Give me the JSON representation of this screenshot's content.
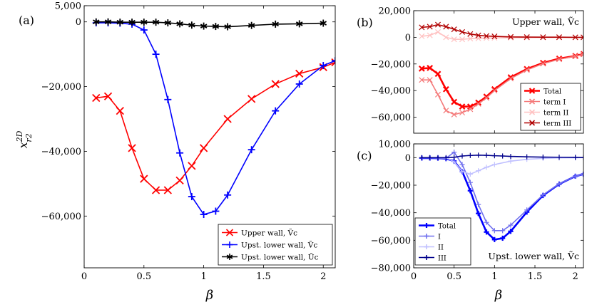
{
  "chart_data": [
    {
      "id": "a",
      "type": "line",
      "panel_label": "(a)",
      "ylabel": "x^{2D}_{r2}",
      "xlabel": "β",
      "xlim": [
        0,
        2.1
      ],
      "ylim": [
        -76000,
        5000
      ],
      "xticks": [
        0,
        0.5,
        1,
        1.5,
        2
      ],
      "xtick_labels": [
        "0",
        "0.5",
        "1",
        "1.5",
        "2"
      ],
      "yticks": [
        5000,
        0,
        -20000,
        -40000,
        -60000
      ],
      "ytick_labels": [
        "5,000",
        "0",
        "−20,000",
        "−40,000",
        "−60,000"
      ],
      "legend_position": "bottom-right",
      "series": [
        {
          "name": "Upper wall, Ṽc",
          "color": "#ff0000",
          "marker": "x",
          "x": [
            0.1,
            0.2,
            0.3,
            0.4,
            0.5,
            0.6,
            0.7,
            0.8,
            0.9,
            1.0,
            1.2,
            1.4,
            1.6,
            1.8,
            2.0,
            2.1
          ],
          "y": [
            -23500,
            -23000,
            -27500,
            -39000,
            -48500,
            -52000,
            -52000,
            -49000,
            -44500,
            -39000,
            -30000,
            -23800,
            -19200,
            -16000,
            -14000,
            -12500
          ]
        },
        {
          "name": "Upst. lower wall, Ṽc",
          "color": "#0000ff",
          "marker": "+",
          "x": [
            0.1,
            0.2,
            0.3,
            0.4,
            0.5,
            0.6,
            0.7,
            0.8,
            0.9,
            1.0,
            1.1,
            1.2,
            1.4,
            1.6,
            1.8,
            2.0,
            2.1
          ],
          "y": [
            -300,
            -300,
            -400,
            -700,
            -2500,
            -10000,
            -24000,
            -40500,
            -54000,
            -59500,
            -58500,
            -53500,
            -39500,
            -27500,
            -19200,
            -13500,
            -12000
          ]
        },
        {
          "name": "Upst. lower wall, Ũc",
          "color": "#000000",
          "marker": "star",
          "x": [
            0.1,
            0.2,
            0.3,
            0.4,
            0.5,
            0.6,
            0.7,
            0.8,
            0.9,
            1.0,
            1.1,
            1.2,
            1.4,
            1.6,
            1.8,
            2.0
          ],
          "y": [
            0,
            0,
            -100,
            -100,
            -100,
            -100,
            -300,
            -600,
            -1000,
            -1300,
            -1400,
            -1500,
            -1100,
            -700,
            -600,
            -400
          ]
        }
      ]
    },
    {
      "id": "b",
      "type": "line",
      "panel_label": "(b)",
      "xlim": [
        0,
        2.1
      ],
      "ylim": [
        -72000,
        20000
      ],
      "xticks": [
        0,
        0.5,
        1,
        1.5,
        2
      ],
      "yticks": [
        20000,
        0,
        -20000,
        -40000,
        -60000
      ],
      "ytick_labels": [
        "20,000",
        "0",
        "−20,000",
        "−40,000",
        "−60,000"
      ],
      "annotation": "Upper wall, Ṽc",
      "legend_position": "bottom-right",
      "series": [
        {
          "name": "Total",
          "color": "#ff0000",
          "marker": "x",
          "bold": true,
          "x": [
            0.1,
            0.2,
            0.3,
            0.4,
            0.5,
            0.6,
            0.7,
            0.8,
            0.9,
            1.0,
            1.2,
            1.4,
            1.6,
            1.8,
            2.0,
            2.1
          ],
          "y": [
            -23500,
            -23000,
            -27500,
            -39000,
            -48500,
            -52000,
            -52000,
            -49000,
            -44500,
            -39000,
            -30000,
            -23800,
            -19200,
            -16000,
            -14000,
            -12500
          ]
        },
        {
          "name": "term I",
          "color": "#f47a7a",
          "marker": "x",
          "x": [
            0.1,
            0.2,
            0.3,
            0.4,
            0.5,
            0.6,
            0.7,
            0.8,
            0.9,
            1.0,
            1.2,
            1.4,
            1.6,
            1.8,
            2.0,
            2.1
          ],
          "y": [
            -32000,
            -32000,
            -43000,
            -55000,
            -58000,
            -56500,
            -54000,
            -50000,
            -45500,
            -40000,
            -31000,
            -24500,
            -19800,
            -16500,
            -14200,
            -12800
          ]
        },
        {
          "name": "term II",
          "color": "#ffc2c2",
          "marker": "x",
          "x": [
            0.1,
            0.2,
            0.3,
            0.4,
            0.5,
            0.6,
            0.7,
            0.8,
            0.9,
            1.0,
            1.2,
            1.4,
            1.6,
            1.8,
            2.0,
            2.1
          ],
          "y": [
            800,
            1500,
            4000,
            0,
            -1500,
            -1500,
            -1000,
            -800,
            -500,
            -400,
            -300,
            -200,
            -100,
            -100,
            0,
            0
          ]
        },
        {
          "name": "term III",
          "color": "#b00000",
          "marker": "x",
          "x": [
            0.1,
            0.2,
            0.3,
            0.4,
            0.5,
            0.6,
            0.7,
            0.8,
            0.9,
            1.0,
            1.2,
            1.4,
            1.6,
            1.8,
            2.0,
            2.1
          ],
          "y": [
            7500,
            8000,
            9500,
            8000,
            6000,
            4000,
            2500,
            1500,
            1000,
            700,
            300,
            200,
            100,
            100,
            0,
            0
          ]
        }
      ]
    },
    {
      "id": "c",
      "type": "line",
      "panel_label": "(c)",
      "xlabel": "β",
      "xlim": [
        0,
        2.1
      ],
      "ylim": [
        -80000,
        10000
      ],
      "xticks": [
        0,
        0.5,
        1,
        1.5,
        2
      ],
      "xtick_labels": [
        "0",
        "0.5",
        "1",
        "1.5",
        "2"
      ],
      "yticks": [
        10000,
        0,
        -20000,
        -40000,
        -60000,
        -80000
      ],
      "ytick_labels": [
        "10,000",
        "0",
        "−20,000",
        "−40,000",
        "−60,000",
        "−80,000"
      ],
      "annotation": "Upst. lower wall, Ṽc",
      "legend_position": "bottom-left",
      "series": [
        {
          "name": "Total",
          "color": "#0000ff",
          "marker": "+",
          "bold": true,
          "x": [
            0.1,
            0.2,
            0.3,
            0.4,
            0.5,
            0.6,
            0.7,
            0.8,
            0.9,
            1.0,
            1.1,
            1.2,
            1.4,
            1.6,
            1.8,
            2.0,
            2.1
          ],
          "y": [
            -300,
            -300,
            -400,
            -700,
            -2500,
            -10000,
            -24000,
            -40500,
            -54000,
            -59500,
            -58500,
            -53500,
            -39500,
            -27500,
            -19200,
            -13500,
            -12000
          ]
        },
        {
          "name": "I",
          "color": "#7070ee",
          "marker": "+",
          "x": [
            0.1,
            0.2,
            0.3,
            0.4,
            0.5,
            0.6,
            0.7,
            0.8,
            0.9,
            1.0,
            1.1,
            1.2,
            1.4,
            1.6,
            1.8,
            2.0,
            2.1
          ],
          "y": [
            -200,
            -200,
            -300,
            -500,
            4000,
            -5000,
            -18000,
            -34000,
            -47000,
            -53000,
            -53000,
            -49000,
            -38000,
            -27000,
            -19000,
            -13500,
            -12000
          ]
        },
        {
          "name": "II",
          "color": "#c0c0ff",
          "marker": "+",
          "x": [
            0.1,
            0.2,
            0.3,
            0.4,
            0.5,
            0.6,
            0.7,
            0.8,
            0.9,
            1.0,
            1.2,
            1.4,
            1.6,
            1.8,
            2.0,
            2.1
          ],
          "y": [
            0,
            0,
            0,
            0,
            -3000,
            -10000,
            -12000,
            -9500,
            -7000,
            -5000,
            -2500,
            -1200,
            -500,
            -200,
            -100,
            0
          ]
        },
        {
          "name": "III",
          "color": "#00008b",
          "marker": "+",
          "x": [
            0.1,
            0.2,
            0.3,
            0.4,
            0.5,
            0.6,
            0.7,
            0.8,
            0.9,
            1.0,
            1.1,
            1.2,
            1.4,
            1.6,
            1.8,
            2.0,
            2.1
          ],
          "y": [
            0,
            0,
            0,
            0,
            300,
            1200,
            1600,
            1800,
            1700,
            1400,
            1200,
            900,
            600,
            400,
            300,
            200,
            100
          ]
        }
      ]
    }
  ]
}
